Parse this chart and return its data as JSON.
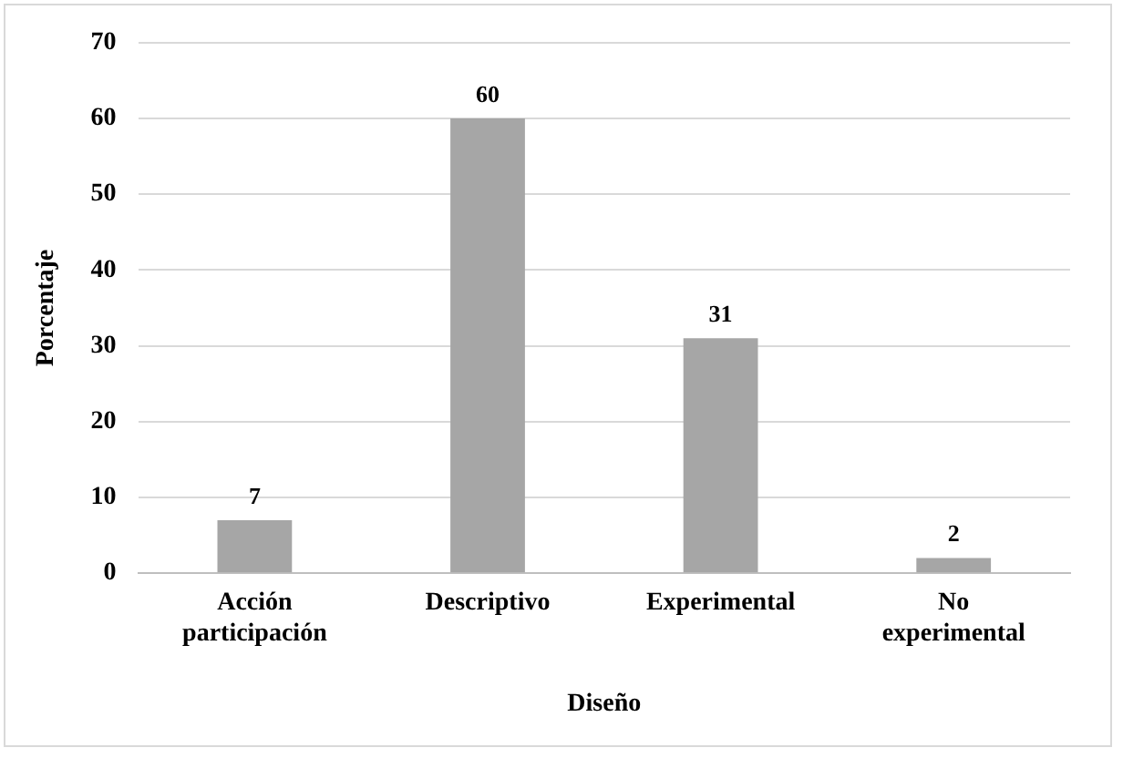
{
  "chart_data": {
    "type": "bar",
    "xlabel": "Diseño",
    "ylabel": "Porcentaje",
    "categories": [
      "Acción participación",
      "Descriptivo",
      "Experimental",
      "No experimental"
    ],
    "values": [
      7,
      60,
      31,
      2
    ],
    "color": "#a6a6a6",
    "ylim": [
      0,
      70
    ],
    "yticks": [
      0,
      10,
      20,
      30,
      40,
      50,
      60,
      70
    ],
    "grid": "y",
    "data_labels": true
  }
}
